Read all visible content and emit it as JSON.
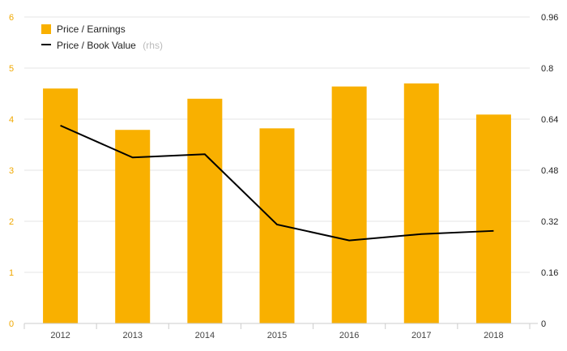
{
  "chart_data": {
    "type": "bar",
    "categories": [
      "2012",
      "2013",
      "2014",
      "2015",
      "2016",
      "2017",
      "2018"
    ],
    "series": [
      {
        "name": "Price / Earnings",
        "type": "bar",
        "axis": "left",
        "color": "#f9b000",
        "values": [
          4.6,
          3.79,
          4.4,
          3.82,
          4.64,
          4.7,
          4.09
        ]
      },
      {
        "name": "Price / Book Value",
        "name_note": "(rhs)",
        "type": "line",
        "axis": "right",
        "color": "#000000",
        "values": [
          0.62,
          0.52,
          0.53,
          0.31,
          0.26,
          0.28,
          0.29
        ]
      }
    ],
    "ylim_left": [
      0,
      6
    ],
    "ylim_right": [
      0,
      0.96
    ],
    "left_ticks": [
      "0",
      "1",
      "2",
      "3",
      "4",
      "5",
      "6"
    ],
    "right_ticks": [
      "0",
      "0.16",
      "0.32",
      "0.48",
      "0.64",
      "0.8",
      "0.96"
    ],
    "left_tick_color": "#f0a800",
    "grid": true,
    "legend_position": "top-left"
  }
}
